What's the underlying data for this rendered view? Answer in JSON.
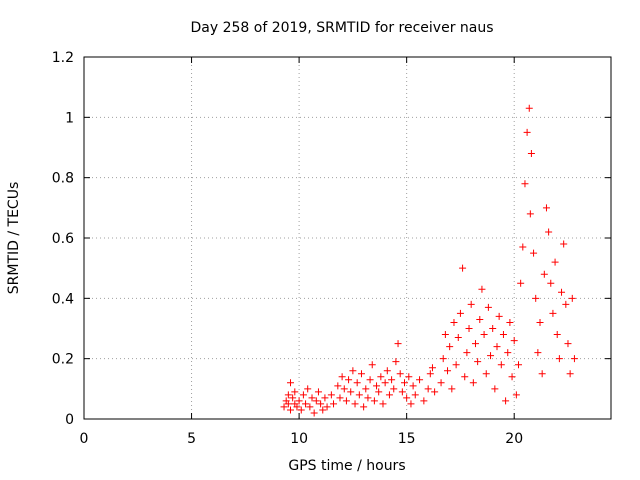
{
  "chart_data": {
    "type": "scatter",
    "title": "Day 258 of 2019, SRMTID for receiver naus",
    "xlabel": "GPS time / hours",
    "ylabel": "SRMTID / TECUs",
    "xlim": [
      0,
      24.5
    ],
    "ylim": [
      0,
      1.2
    ],
    "x_ticks": [
      0,
      5,
      10,
      15,
      20
    ],
    "x_tick_labels": [
      "0",
      "5",
      "10",
      "15",
      "20"
    ],
    "y_ticks": [
      0,
      0.2,
      0.4,
      0.6,
      0.8,
      1.0,
      1.2
    ],
    "y_tick_labels": [
      "0",
      "0.2",
      "0.4",
      "0.6",
      "0.8",
      "1",
      "1.2"
    ],
    "grid": true,
    "marker": "plus",
    "color": "#ff0000",
    "series": [
      {
        "name": "SRMTID",
        "points": [
          [
            9.3,
            0.04
          ],
          [
            9.4,
            0.06
          ],
          [
            9.5,
            0.05
          ],
          [
            9.5,
            0.08
          ],
          [
            9.6,
            0.03
          ],
          [
            9.6,
            0.12
          ],
          [
            9.7,
            0.07
          ],
          [
            9.8,
            0.05
          ],
          [
            9.8,
            0.09
          ],
          [
            9.9,
            0.04
          ],
          [
            10.0,
            0.06
          ],
          [
            10.1,
            0.03
          ],
          [
            10.2,
            0.08
          ],
          [
            10.3,
            0.05
          ],
          [
            10.4,
            0.1
          ],
          [
            10.5,
            0.04
          ],
          [
            10.6,
            0.07
          ],
          [
            10.7,
            0.02
          ],
          [
            10.8,
            0.06
          ],
          [
            10.9,
            0.09
          ],
          [
            11.0,
            0.05
          ],
          [
            11.1,
            0.03
          ],
          [
            11.2,
            0.07
          ],
          [
            11.3,
            0.04
          ],
          [
            11.5,
            0.08
          ],
          [
            11.6,
            0.05
          ],
          [
            11.8,
            0.11
          ],
          [
            11.9,
            0.07
          ],
          [
            12.0,
            0.14
          ],
          [
            12.1,
            0.1
          ],
          [
            12.2,
            0.06
          ],
          [
            12.3,
            0.13
          ],
          [
            12.4,
            0.09
          ],
          [
            12.5,
            0.16
          ],
          [
            12.6,
            0.05
          ],
          [
            12.7,
            0.12
          ],
          [
            12.8,
            0.08
          ],
          [
            12.9,
            0.15
          ],
          [
            13.0,
            0.04
          ],
          [
            13.1,
            0.1
          ],
          [
            13.2,
            0.07
          ],
          [
            13.3,
            0.13
          ],
          [
            13.4,
            0.18
          ],
          [
            13.5,
            0.06
          ],
          [
            13.6,
            0.11
          ],
          [
            13.7,
            0.09
          ],
          [
            13.8,
            0.14
          ],
          [
            13.9,
            0.05
          ],
          [
            14.0,
            0.12
          ],
          [
            14.1,
            0.16
          ],
          [
            14.2,
            0.08
          ],
          [
            14.3,
            0.13
          ],
          [
            14.4,
            0.1
          ],
          [
            14.5,
            0.19
          ],
          [
            14.6,
            0.25
          ],
          [
            14.7,
            0.15
          ],
          [
            14.8,
            0.09
          ],
          [
            14.9,
            0.12
          ],
          [
            15.0,
            0.07
          ],
          [
            15.1,
            0.14
          ],
          [
            15.2,
            0.05
          ],
          [
            15.3,
            0.11
          ],
          [
            15.4,
            0.08
          ],
          [
            15.6,
            0.13
          ],
          [
            15.8,
            0.06
          ],
          [
            16.0,
            0.1
          ],
          [
            16.1,
            0.15
          ],
          [
            16.2,
            0.17
          ],
          [
            16.3,
            0.09
          ],
          [
            16.6,
            0.12
          ],
          [
            16.7,
            0.2
          ],
          [
            16.8,
            0.28
          ],
          [
            16.9,
            0.16
          ],
          [
            17.0,
            0.24
          ],
          [
            17.1,
            0.1
          ],
          [
            17.2,
            0.32
          ],
          [
            17.3,
            0.18
          ],
          [
            17.4,
            0.27
          ],
          [
            17.5,
            0.35
          ],
          [
            17.6,
            0.5
          ],
          [
            17.7,
            0.14
          ],
          [
            17.8,
            0.22
          ],
          [
            17.9,
            0.3
          ],
          [
            18.0,
            0.38
          ],
          [
            18.1,
            0.12
          ],
          [
            18.2,
            0.25
          ],
          [
            18.3,
            0.19
          ],
          [
            18.4,
            0.33
          ],
          [
            18.5,
            0.43
          ],
          [
            18.6,
            0.28
          ],
          [
            18.7,
            0.15
          ],
          [
            18.8,
            0.37
          ],
          [
            18.9,
            0.21
          ],
          [
            19.0,
            0.3
          ],
          [
            19.1,
            0.1
          ],
          [
            19.2,
            0.24
          ],
          [
            19.3,
            0.34
          ],
          [
            19.4,
            0.18
          ],
          [
            19.5,
            0.28
          ],
          [
            19.6,
            0.06
          ],
          [
            19.7,
            0.22
          ],
          [
            19.8,
            0.32
          ],
          [
            19.9,
            0.14
          ],
          [
            20.0,
            0.26
          ],
          [
            20.1,
            0.08
          ],
          [
            20.2,
            0.18
          ],
          [
            20.3,
            0.45
          ],
          [
            20.4,
            0.57
          ],
          [
            20.5,
            0.78
          ],
          [
            20.6,
            0.95
          ],
          [
            20.7,
            1.03
          ],
          [
            20.75,
            0.68
          ],
          [
            20.8,
            0.88
          ],
          [
            20.9,
            0.55
          ],
          [
            21.0,
            0.4
          ],
          [
            21.1,
            0.22
          ],
          [
            21.2,
            0.32
          ],
          [
            21.3,
            0.15
          ],
          [
            21.4,
            0.48
          ],
          [
            21.5,
            0.7
          ],
          [
            21.6,
            0.62
          ],
          [
            21.7,
            0.45
          ],
          [
            21.8,
            0.35
          ],
          [
            21.9,
            0.52
          ],
          [
            22.0,
            0.28
          ],
          [
            22.1,
            0.2
          ],
          [
            22.2,
            0.42
          ],
          [
            22.3,
            0.58
          ],
          [
            22.4,
            0.38
          ],
          [
            22.5,
            0.25
          ],
          [
            22.6,
            0.15
          ],
          [
            22.7,
            0.4
          ],
          [
            22.8,
            0.2
          ]
        ]
      }
    ]
  }
}
